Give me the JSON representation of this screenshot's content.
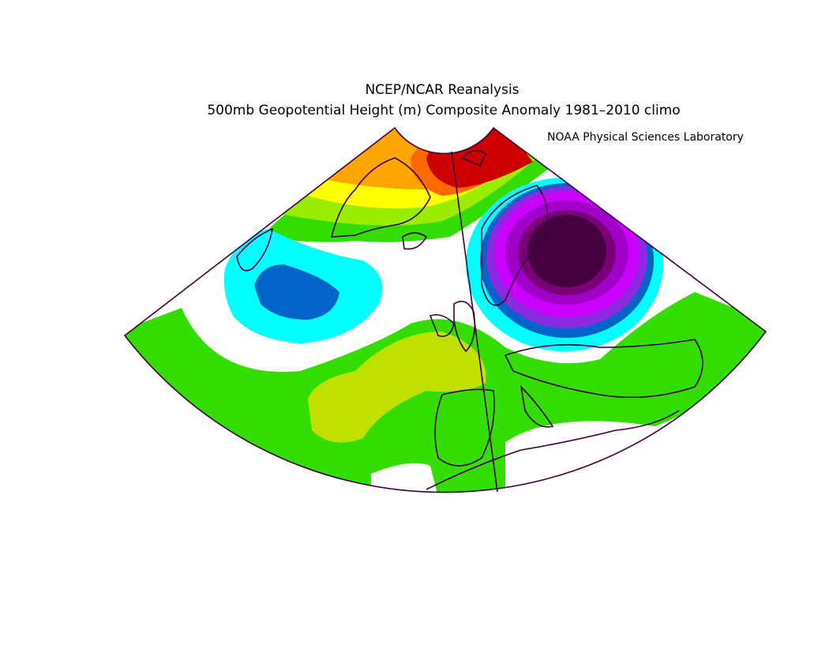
{
  "header": {
    "title": "NCEP/NCAR Reanalysis",
    "subtitle": "500mb Geopotential Height (m) Composite Anomaly 1981–2010 climo",
    "credit": "NOAA Physical Sciences Laboratory"
  }
}
